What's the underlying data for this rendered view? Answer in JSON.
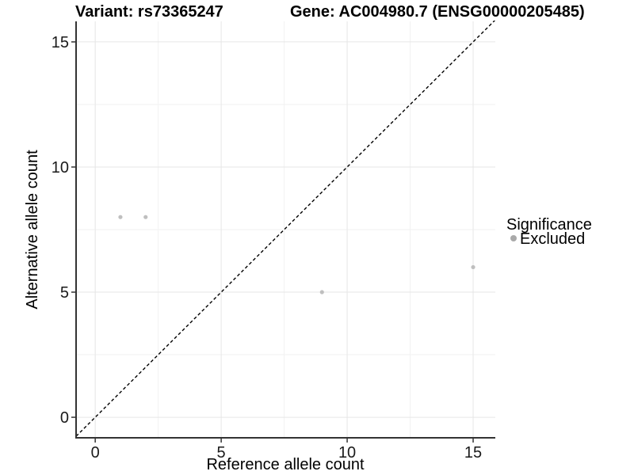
{
  "chart_data": {
    "type": "scatter",
    "title_left": "Variant: rs73365247",
    "title_right": "Gene: AC004980.7 (ENSG00000205485)",
    "xlabel": "Reference allele count",
    "ylabel": "Alternative allele count",
    "xlim": [
      -0.76,
      15.88
    ],
    "ylim": [
      -0.82,
      15.82
    ],
    "xticks": [
      0,
      5,
      10,
      15
    ],
    "yticks": [
      0,
      5,
      10,
      15
    ],
    "x_minor_ticks": [
      2.5,
      7.5,
      12.5
    ],
    "y_minor_ticks": [
      2.5,
      7.5,
      12.5
    ],
    "grid": "major+minor",
    "identity_line": {
      "slope": 1,
      "intercept": 0,
      "style": "dashed",
      "color": "#000000"
    },
    "series": [
      {
        "name": "Excluded",
        "marker": "circle",
        "color": "#bfbfbf",
        "points": [
          [
            1,
            8
          ],
          [
            2,
            8
          ],
          [
            9,
            5
          ],
          [
            15,
            6
          ]
        ]
      }
    ],
    "legend": {
      "title": "Significance",
      "position": "right",
      "entries": [
        {
          "label": "Excluded",
          "color": "#a9a9a9"
        }
      ]
    },
    "colors": {
      "background": "#ffffff",
      "grid_major": "#e6e6e6",
      "grid_minor": "#f2f2f2",
      "axis_line": "#333333",
      "tick_mark": "#333333"
    }
  }
}
